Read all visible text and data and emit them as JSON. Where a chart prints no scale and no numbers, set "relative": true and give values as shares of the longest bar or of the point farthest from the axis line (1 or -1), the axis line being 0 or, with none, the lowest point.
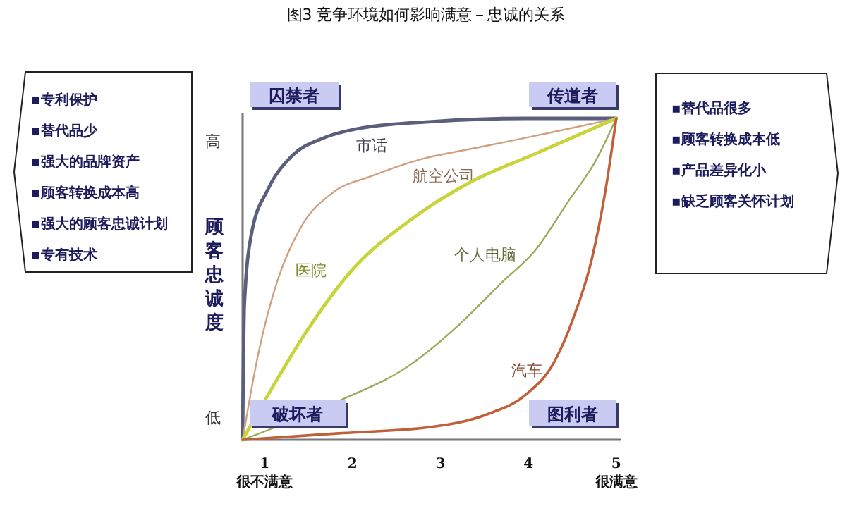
{
  "chart_data": {
    "type": "line",
    "relative": true,
    "title": "图3 竞争环境如何影响满意－忠诚的关系",
    "ylabel": "顾客忠诚度",
    "xlim": [
      0.75,
      5.05
    ],
    "xticks": [
      {
        "value": 1,
        "label": "1\n很不满意"
      },
      2,
      3,
      4,
      {
        "value": 5,
        "label": "5\n很满意"
      }
    ],
    "grid": false,
    "marker": "none",
    "line_style": "solid",
    "series": [
      {
        "name": "市话",
        "color": "#5a5f7e",
        "x": [
          0.75,
          0.77,
          0.85,
          1.04,
          1.3,
          1.68,
          2.1,
          2.9,
          3.97,
          5
        ],
        "values": [
          0,
          0.42,
          0.64,
          0.78,
          0.88,
          0.94,
          0.97,
          0.99,
          1,
          1
        ]
      },
      {
        "name": "航空公司",
        "color": "#d0a080",
        "x": [
          0.75,
          0.93,
          1.14,
          1.41,
          1.78,
          2.21,
          2.74,
          3.44,
          4.24,
          5
        ],
        "values": [
          0,
          0.27,
          0.49,
          0.66,
          0.77,
          0.82,
          0.87,
          0.91,
          0.955,
          1
        ]
      },
      {
        "name": "医院",
        "color": "#c8d43a",
        "x": [
          0.75,
          1.04,
          1.46,
          2,
          2.64,
          3.33,
          4.08,
          5
        ],
        "values": [
          0,
          0.14,
          0.33,
          0.53,
          0.68,
          0.8,
          0.89,
          1
        ]
      },
      {
        "name": "个人电脑",
        "color": "#9aab5a",
        "x": [
          0.75,
          1.84,
          2.64,
          3.22,
          3.7,
          4.08,
          4.45,
          4.77,
          5
        ],
        "values": [
          0,
          0.12,
          0.23,
          0.36,
          0.49,
          0.59,
          0.74,
          0.87,
          1
        ]
      },
      {
        "name": "汽车",
        "color": "#c0603a",
        "x": [
          0.75,
          1.84,
          2.9,
          3.54,
          3.97,
          4.29,
          4.5,
          4.72,
          4.88,
          5
        ],
        "values": [
          0,
          0.02,
          0.04,
          0.08,
          0.14,
          0.24,
          0.37,
          0.56,
          0.78,
          1
        ]
      }
    ],
    "annotations": [
      "囚禁者",
      "传道者",
      "破坏者",
      "图利者",
      "高",
      "低",
      "▪专利保护",
      "▪替代品少",
      "▪强大的品牌资产",
      "▪顾客转换成本高",
      "▪强大的顾客忠诚计划",
      "▪专有技术",
      "▪替代品很多",
      "▪顾客转换成本低",
      "▪产品差异化小",
      "▪缺乏顾客关怀计划"
    ]
  }
}
